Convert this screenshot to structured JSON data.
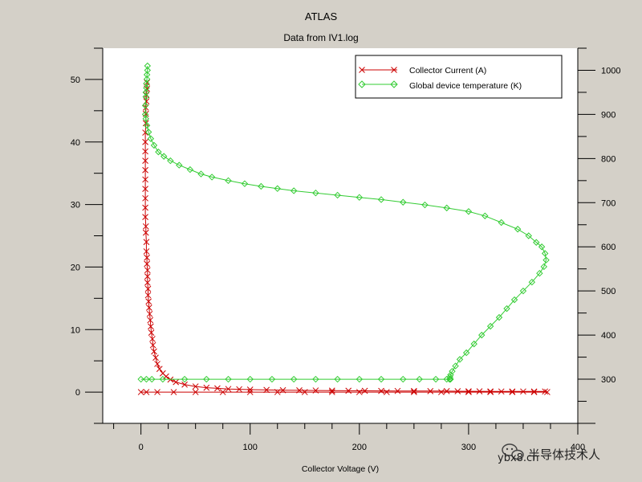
{
  "chart_data": {
    "type": "scatter",
    "title": "ATLAS",
    "subtitle": "Data from IV1.log",
    "xlabel": "Collector Voltage (V)",
    "ylabel": "",
    "y2label": "",
    "xlim": [
      -35,
      400
    ],
    "ylim": [
      -5,
      55
    ],
    "y2lim": [
      200,
      1050
    ],
    "xticks": [
      0,
      100,
      200,
      300,
      400
    ],
    "yticks": [
      0,
      10,
      20,
      30,
      40,
      50
    ],
    "y2ticks": [
      300,
      400,
      500,
      600,
      700,
      800,
      900,
      1000
    ],
    "grid": false,
    "legend_position": "top-right",
    "series": [
      {
        "name": "Collector Current (A)",
        "axis": "left",
        "color": "#cc0000",
        "marker": "x",
        "x": [
          5.5,
          5.5,
          5.0,
          5.0,
          4.5,
          4.5,
          4.5,
          4.0,
          4.0,
          4.0,
          4.0,
          4.0,
          4.0,
          4.0,
          4.0,
          4.0,
          4.0,
          4.5,
          4.5,
          5.0,
          5.0,
          5.5,
          5.5,
          6.0,
          6.0,
          6.0,
          6.5,
          6.5,
          7.0,
          7.5,
          8.0,
          8.5,
          9.0,
          9.5,
          10.5,
          11.0,
          12.0,
          13.5,
          15.0,
          17.0,
          20.0,
          23.0,
          27.0,
          32.0,
          40.0,
          50.0,
          60.0,
          70.0,
          80.0,
          90.0,
          100.0,
          115.0,
          130.0,
          145.0,
          160.0,
          175.0,
          190.0,
          205.0,
          220.0,
          235.0,
          250.0,
          265.0,
          280.0,
          290.0,
          300.0,
          310.0,
          320.0,
          330.0,
          340.0,
          350.0,
          360.0,
          370.0,
          372.0,
          360.0,
          340.0,
          320.0,
          300.0,
          275.0,
          250.0,
          225.0,
          200.0,
          175.0,
          150.0,
          125.0,
          100.0,
          75.0,
          50.0,
          30.0,
          15.0,
          5.0,
          0.0
        ],
        "y": [
          49.5,
          48.5,
          47.5,
          46.5,
          45.5,
          44.5,
          43.0,
          41.5,
          40.0,
          38.5,
          37.0,
          35.5,
          34.0,
          32.5,
          31.0,
          29.5,
          28.0,
          26.5,
          25.5,
          24.0,
          22.5,
          21.5,
          20.5,
          19.5,
          18.5,
          17.5,
          16.5,
          15.5,
          14.5,
          13.5,
          12.5,
          11.5,
          10.5,
          9.5,
          8.5,
          7.5,
          6.5,
          5.5,
          4.5,
          3.7,
          3.0,
          2.5,
          2.0,
          1.6,
          1.2,
          0.9,
          0.7,
          0.6,
          0.5,
          0.45,
          0.4,
          0.35,
          0.3,
          0.28,
          0.26,
          0.24,
          0.22,
          0.2,
          0.19,
          0.18,
          0.17,
          0.16,
          0.15,
          0.14,
          0.13,
          0.12,
          0.11,
          0.1,
          0.1,
          0.1,
          0.1,
          0.1,
          0.0,
          0.0,
          0.0,
          0.0,
          0.0,
          0.0,
          0.0,
          0.0,
          0.0,
          0.0,
          0.0,
          0.0,
          0.0,
          0.0,
          0.0,
          0.0,
          0.0,
          0.0,
          0.0
        ]
      },
      {
        "name": "Global device temperature (K)",
        "axis": "right",
        "color": "#33cc33",
        "marker": "diamond",
        "x": [
          6.0,
          6.0,
          5.5,
          5.5,
          5.0,
          5.0,
          4.5,
          4.5,
          4.0,
          4.0,
          4.5,
          5.5,
          7.0,
          9.0,
          12.0,
          16.0,
          21.0,
          27.0,
          35.0,
          45.0,
          55.0,
          65.0,
          80.0,
          95.0,
          110.0,
          125.0,
          140.0,
          160.0,
          180.0,
          200.0,
          220.0,
          240.0,
          260.0,
          280.0,
          300.0,
          315.0,
          330.0,
          345.0,
          355.0,
          362.0,
          367.0,
          370.0,
          371.0,
          369.0,
          365.0,
          358.0,
          350.0,
          342.0,
          335.0,
          328.0,
          320.0,
          312.0,
          305.0,
          298.0,
          292.0,
          288.0,
          285.0,
          283.5,
          283.0,
          283.0,
          283.5,
          283.0,
          282.5,
          280.0,
          270.0,
          255.0,
          240.0,
          220.0,
          200.0,
          180.0,
          160.0,
          140.0,
          120.0,
          100.0,
          80.0,
          60.0,
          40.0,
          20.0,
          10.0,
          5.0,
          0.0
        ],
        "y": [
          1010,
          1000,
          990,
          980,
          970,
          960,
          950,
          940,
          920,
          900,
          890,
          875,
          860,
          845,
          830,
          815,
          805,
          795,
          785,
          775,
          765,
          758,
          750,
          743,
          737,
          732,
          727,
          722,
          717,
          712,
          707,
          701,
          695,
          688,
          680,
          670,
          655,
          640,
          625,
          610,
          600,
          585,
          570,
          555,
          540,
          520,
          500,
          480,
          460,
          440,
          420,
          400,
          380,
          360,
          345,
          330,
          318,
          310,
          305,
          300,
          300,
          300,
          300,
          300,
          300,
          300,
          300,
          300,
          300,
          300,
          300,
          300,
          300,
          300,
          300,
          300,
          300,
          300,
          300,
          300,
          300
        ]
      }
    ]
  },
  "watermark": {
    "brand": "半导体技术人",
    "site": "ybx8.cn",
    "icon": "wechat-icon"
  }
}
